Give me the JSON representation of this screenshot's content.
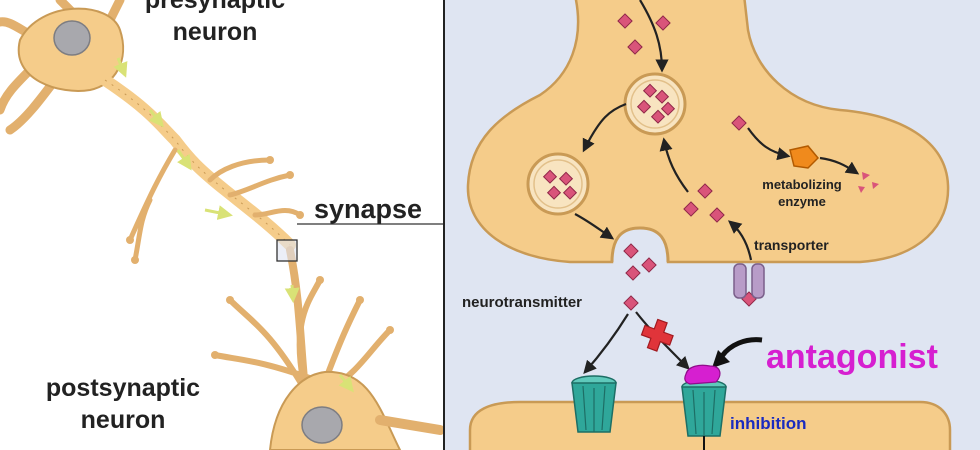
{
  "labels": {
    "presynaptic": [
      "presynaptic",
      "neuron"
    ],
    "postsynaptic": [
      "postsynaptic",
      "neuron"
    ],
    "synapse": "synapse",
    "neurotransmitter": "neurotransmitter",
    "enzyme": [
      "metabolizing",
      "enzyme"
    ],
    "transporter": "transporter",
    "antagonist": "antagonist",
    "inhibition": "inhibition"
  },
  "colors": {
    "neuron_body": "#f5cc8a",
    "neuron_edge": "#c99a55",
    "panel_bg": "#dfe5f2",
    "neurotransmitter": "#d9547a",
    "enzyme": "#f08a1c",
    "antagonist": "#d61fd0",
    "receptor": "#2fa79a",
    "transporter": "#b89cc8",
    "block_cross": "#e0343a",
    "inhibition_text": "#1a2bbf"
  },
  "icons": [
    "presynaptic-neuron",
    "postsynaptic-neuron",
    "synaptic-vesicle",
    "receptor",
    "transporter",
    "enzyme",
    "block-cross",
    "antagonist-blob"
  ]
}
